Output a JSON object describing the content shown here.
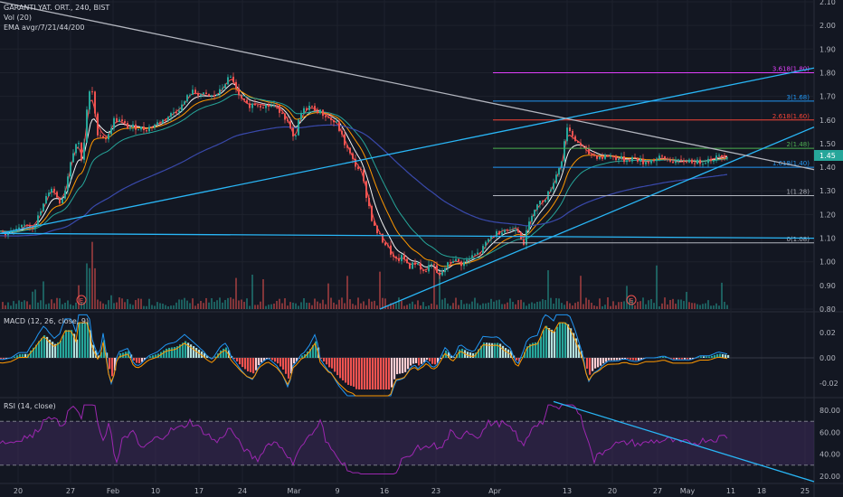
{
  "symbol_line": "GARANTI YAT. ORT., 240, BIST",
  "volume_label": "Vol (20)",
  "ema_label": "EMA avgr/7/21/44/200",
  "macd_label": "MACD (12, 26, close, 9)",
  "rsi_label": "RSI (14, close)",
  "current_price": "1.45",
  "colors": {
    "background": "#131722",
    "up": "#26a69a",
    "down": "#ef5350",
    "trendline": "#29b6f6",
    "resistance": "#b2b5be",
    "rsi_band": "#3c2a5a",
    "rsi_line": "#9c27b0"
  },
  "chart_data": [
    {
      "type": "candlestick",
      "title": "GARANTI YAT. ORT., 240, BIST",
      "x_ticks": [
        "20",
        "27",
        "Feb",
        "10",
        "17",
        "24",
        "Mar",
        "9",
        "16",
        "23",
        "Apr",
        "13",
        "20",
        "27",
        "May",
        "11",
        "18",
        "25"
      ],
      "ylim": [
        0.8,
        2.1
      ],
      "y_ticks": [
        "2.10",
        "2.00",
        "1.90",
        "1.80",
        "1.70",
        "1.60",
        "1.50",
        "1.45",
        "1.40",
        "1.30",
        "1.20",
        "1.10",
        "1.00",
        "0.90",
        "0.80"
      ],
      "price_path": [
        [
          0,
          1.13
        ],
        [
          8,
          1.12
        ],
        [
          18,
          1.13
        ],
        [
          28,
          1.16
        ],
        [
          36,
          1.15
        ],
        [
          45,
          1.22
        ],
        [
          55,
          1.32
        ],
        [
          66,
          1.25
        ],
        [
          72,
          1.32
        ],
        [
          78,
          1.45
        ],
        [
          85,
          1.52
        ],
        [
          90,
          1.42
        ],
        [
          96,
          1.68
        ],
        [
          100,
          1.75
        ],
        [
          106,
          1.55
        ],
        [
          112,
          1.53
        ],
        [
          118,
          1.52
        ],
        [
          124,
          1.6
        ],
        [
          130,
          1.6
        ],
        [
          140,
          1.57
        ],
        [
          150,
          1.57
        ],
        [
          160,
          1.56
        ],
        [
          170,
          1.58
        ],
        [
          180,
          1.6
        ],
        [
          190,
          1.63
        ],
        [
          200,
          1.66
        ],
        [
          210,
          1.72
        ],
        [
          220,
          1.71
        ],
        [
          228,
          1.7
        ],
        [
          235,
          1.7
        ],
        [
          242,
          1.72
        ],
        [
          250,
          1.77
        ],
        [
          256,
          1.78
        ],
        [
          262,
          1.7
        ],
        [
          272,
          1.66
        ],
        [
          282,
          1.67
        ],
        [
          292,
          1.66
        ],
        [
          302,
          1.66
        ],
        [
          312,
          1.63
        ],
        [
          318,
          1.58
        ],
        [
          325,
          1.5
        ],
        [
          330,
          1.62
        ],
        [
          340,
          1.66
        ],
        [
          350,
          1.64
        ],
        [
          358,
          1.62
        ],
        [
          365,
          1.6
        ],
        [
          372,
          1.58
        ],
        [
          380,
          1.5
        ],
        [
          390,
          1.42
        ],
        [
          398,
          1.38
        ],
        [
          406,
          1.25
        ],
        [
          412,
          1.15
        ],
        [
          420,
          1.1
        ],
        [
          428,
          1.06
        ],
        [
          436,
          1.0
        ],
        [
          444,
          1.02
        ],
        [
          452,
          0.98
        ],
        [
          460,
          1.0
        ],
        [
          468,
          0.95
        ],
        [
          476,
          1.0
        ],
        [
          484,
          0.93
        ],
        [
          492,
          0.98
        ],
        [
          500,
          1.01
        ],
        [
          510,
          0.99
        ],
        [
          520,
          1.02
        ],
        [
          530,
          1.04
        ],
        [
          540,
          1.1
        ],
        [
          548,
          1.12
        ],
        [
          556,
          1.14
        ],
        [
          562,
          1.13
        ],
        [
          570,
          1.15
        ],
        [
          578,
          1.08
        ],
        [
          588,
          1.22
        ],
        [
          596,
          1.25
        ],
        [
          604,
          1.28
        ],
        [
          612,
          1.35
        ],
        [
          620,
          1.43
        ],
        [
          626,
          1.58
        ],
        [
          632,
          1.52
        ],
        [
          640,
          1.5
        ],
        [
          648,
          1.46
        ],
        [
          656,
          1.45
        ],
        [
          664,
          1.44
        ],
        [
          672,
          1.45
        ],
        [
          680,
          1.44
        ],
        [
          690,
          1.43
        ],
        [
          700,
          1.44
        ],
        [
          710,
          1.42
        ],
        [
          720,
          1.43
        ],
        [
          730,
          1.44
        ],
        [
          740,
          1.43
        ],
        [
          750,
          1.42
        ],
        [
          760,
          1.43
        ],
        [
          770,
          1.42
        ],
        [
          780,
          1.43
        ],
        [
          790,
          1.44
        ],
        [
          800,
          1.45
        ]
      ],
      "fib_levels": [
        {
          "label": "3.618(1.80)",
          "price": 1.8,
          "color": "#e040fb"
        },
        {
          "label": "3(1.68)",
          "price": 1.68,
          "color": "#2196f3"
        },
        {
          "label": "2.618(1.60)",
          "price": 1.6,
          "color": "#f44336"
        },
        {
          "label": "2(1.48)",
          "price": 1.48,
          "color": "#4caf50"
        },
        {
          "label": "1.618(1.40)",
          "price": 1.4,
          "color": "#2196f3"
        },
        {
          "label": "1(1.28)",
          "price": 1.28,
          "color": "#b2b5be"
        },
        {
          "label": "0(1.08)",
          "price": 1.08,
          "color": "#b2b5be"
        }
      ]
    },
    {
      "type": "bar",
      "title": "MACD (12, 26, close, 9)",
      "y_ticks": [
        "0.02",
        "0.00",
        "-0.02"
      ],
      "ylim": [
        -0.03,
        0.035
      ]
    },
    {
      "type": "line",
      "title": "RSI (14, close)",
      "y_ticks": [
        "80.00",
        "60.00",
        "40.00",
        "20.00"
      ],
      "ylim": [
        15,
        90
      ],
      "bands": [
        70,
        30
      ]
    }
  ]
}
